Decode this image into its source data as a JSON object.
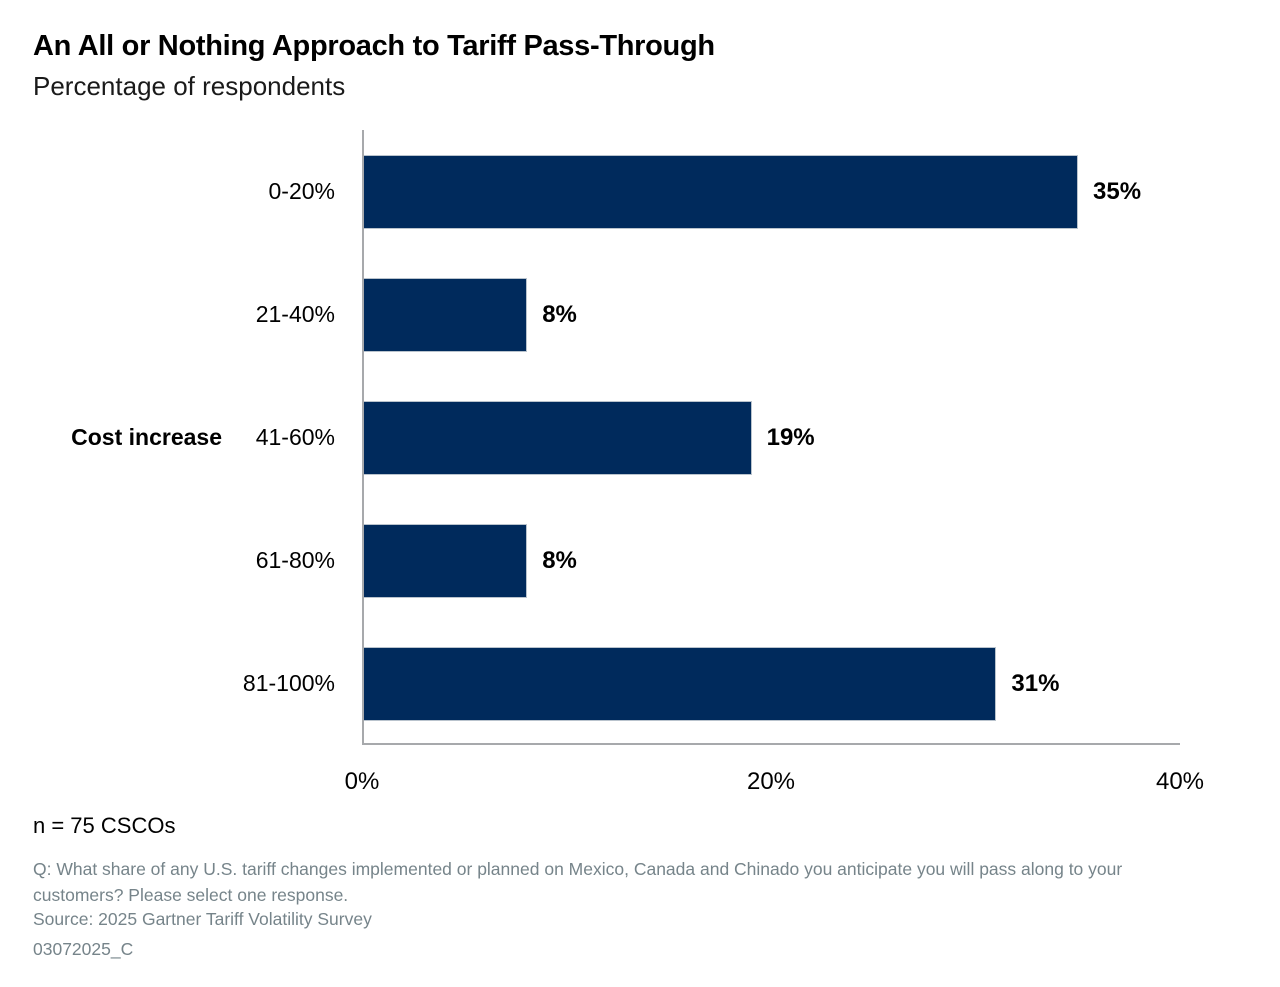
{
  "chart_data": {
    "type": "bar",
    "orientation": "horizontal",
    "title": "An All or Nothing Approach to Tariff Pass-Through",
    "subtitle": "Percentage of respondents",
    "y_axis_title": "Cost increase",
    "categories": [
      "0-20%",
      "21-40%",
      "41-60%",
      "61-80%",
      "81-100%"
    ],
    "values": [
      35,
      8,
      19,
      8,
      31
    ],
    "value_labels": [
      "35%",
      "8%",
      "19%",
      "8%",
      "31%"
    ],
    "xlim": [
      0,
      40
    ],
    "x_ticks": [
      0,
      20,
      40
    ],
    "x_tick_labels": [
      "0%",
      "20%",
      "40%"
    ],
    "grid": false,
    "legend": false,
    "bar_color": "#002a5c",
    "axis_color": "#a7a9ac"
  },
  "footer": {
    "sample_size": "n = 75 CSCOs",
    "question": "Q: What share of any U.S. tariff changes implemented or planned on Mexico, Canada and Chinado you anticipate you will pass along to your customers? Please select one response.",
    "source": "Source: 2025 Gartner Tariff Volatility Survey",
    "doc_id": "03072025_C"
  }
}
